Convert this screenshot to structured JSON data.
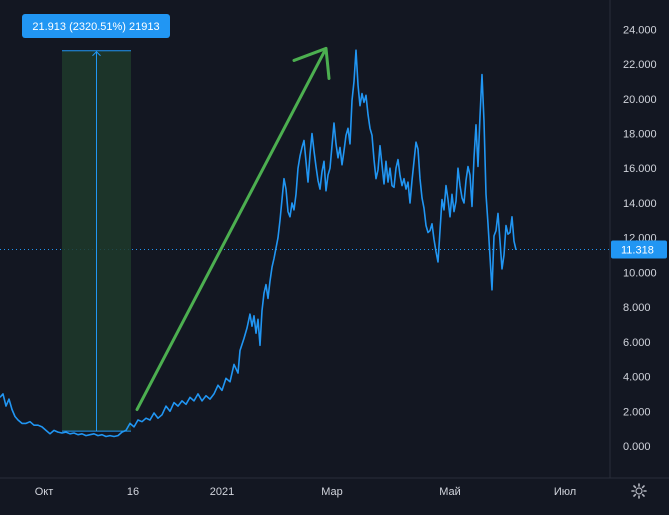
{
  "colors": {
    "background": "#131722",
    "line": "#2196f3",
    "measure_fill": "#1e3a2a",
    "measure_line": "#2196f3",
    "arrow": "#4caf50",
    "axis_text": "#d1d4dc",
    "grid": "#2a2e39",
    "label_bg": "#2196f3",
    "label_text": "#ffffff"
  },
  "settings_icon": "gear-icon",
  "chart_data": {
    "type": "line",
    "title": "",
    "xlabel": "",
    "ylabel": "",
    "ylim": [
      -1.6,
      25.5
    ],
    "y_ticks": [
      "0.000",
      "2.000",
      "4.000",
      "6.000",
      "8.000",
      "10.000",
      "12.000",
      "14.000",
      "16.000",
      "18.000",
      "20.000",
      "22.000",
      "24.000"
    ],
    "x_ticks": [
      "Окт",
      "16",
      "2021",
      "Мар",
      "Май",
      "Июл"
    ],
    "grid": false,
    "current_value_label": "11.318",
    "current_value": 11.318,
    "measure_label": "21.913 (2320.51%) 21913",
    "series": [
      {
        "values": [
          [
            0,
            2.8
          ],
          [
            3,
            3.0
          ],
          [
            6,
            2.3
          ],
          [
            9,
            2.7
          ],
          [
            12,
            2.1
          ],
          [
            15,
            1.7
          ],
          [
            18,
            1.5
          ],
          [
            22,
            1.3
          ],
          [
            26,
            1.3
          ],
          [
            30,
            1.4
          ],
          [
            34,
            1.2
          ],
          [
            38,
            1.2
          ],
          [
            42,
            1.1
          ],
          [
            46,
            0.9
          ],
          [
            50,
            0.7
          ],
          [
            54,
            0.9
          ],
          [
            58,
            0.8
          ],
          [
            62,
            0.75
          ],
          [
            66,
            0.8
          ],
          [
            70,
            0.7
          ],
          [
            74,
            0.75
          ],
          [
            78,
            0.65
          ],
          [
            82,
            0.7
          ],
          [
            86,
            0.6
          ],
          [
            90,
            0.65
          ],
          [
            94,
            0.7
          ],
          [
            98,
            0.6
          ],
          [
            102,
            0.65
          ],
          [
            106,
            0.55
          ],
          [
            110,
            0.6
          ],
          [
            114,
            0.55
          ],
          [
            118,
            0.6
          ],
          [
            122,
            0.8
          ],
          [
            126,
            0.9
          ],
          [
            130,
            1.3
          ],
          [
            134,
            1.1
          ],
          [
            138,
            1.5
          ],
          [
            142,
            1.4
          ],
          [
            146,
            1.6
          ],
          [
            150,
            1.5
          ],
          [
            154,
            1.9
          ],
          [
            158,
            1.6
          ],
          [
            162,
            1.8
          ],
          [
            166,
            2.3
          ],
          [
            170,
            2.0
          ],
          [
            174,
            2.5
          ],
          [
            178,
            2.3
          ],
          [
            182,
            2.6
          ],
          [
            186,
            2.4
          ],
          [
            190,
            2.8
          ],
          [
            194,
            2.6
          ],
          [
            198,
            3.0
          ],
          [
            202,
            2.6
          ],
          [
            206,
            2.9
          ],
          [
            210,
            2.7
          ],
          [
            214,
            3.0
          ],
          [
            218,
            3.5
          ],
          [
            222,
            3.2
          ],
          [
            226,
            3.9
          ],
          [
            230,
            3.7
          ],
          [
            234,
            4.7
          ],
          [
            238,
            4.2
          ],
          [
            240,
            5.5
          ],
          [
            244,
            6.2
          ],
          [
            247,
            6.8
          ],
          [
            250,
            7.6
          ],
          [
            252,
            6.9
          ],
          [
            254,
            7.5
          ],
          [
            256,
            6.5
          ],
          [
            258,
            7.3
          ],
          [
            260,
            5.8
          ],
          [
            262,
            7.8
          ],
          [
            264,
            8.8
          ],
          [
            266,
            9.3
          ],
          [
            268,
            8.5
          ],
          [
            270,
            9.5
          ],
          [
            272,
            10.3
          ],
          [
            274,
            10.8
          ],
          [
            276,
            11.4
          ],
          [
            278,
            12.0
          ],
          [
            280,
            13.0
          ],
          [
            282,
            14.2
          ],
          [
            284,
            15.4
          ],
          [
            286,
            14.8
          ],
          [
            288,
            13.5
          ],
          [
            290,
            13.2
          ],
          [
            292,
            14.0
          ],
          [
            294,
            13.6
          ],
          [
            296,
            14.5
          ],
          [
            298,
            16.0
          ],
          [
            300,
            16.7
          ],
          [
            302,
            17.2
          ],
          [
            304,
            17.6
          ],
          [
            306,
            16.4
          ],
          [
            308,
            15.2
          ],
          [
            310,
            16.8
          ],
          [
            312,
            18.0
          ],
          [
            314,
            17.0
          ],
          [
            316,
            16.1
          ],
          [
            318,
            15.3
          ],
          [
            320,
            14.8
          ],
          [
            322,
            15.8
          ],
          [
            324,
            16.4
          ],
          [
            326,
            14.7
          ],
          [
            328,
            15.6
          ],
          [
            330,
            16.0
          ],
          [
            332,
            17.3
          ],
          [
            334,
            18.6
          ],
          [
            336,
            17.4
          ],
          [
            338,
            16.6
          ],
          [
            340,
            17.2
          ],
          [
            342,
            16.2
          ],
          [
            344,
            17.0
          ],
          [
            346,
            17.9
          ],
          [
            348,
            18.3
          ],
          [
            350,
            17.4
          ],
          [
            352,
            19.9
          ],
          [
            354,
            21.0
          ],
          [
            356,
            22.8
          ],
          [
            358,
            20.8
          ],
          [
            360,
            19.6
          ],
          [
            362,
            20.3
          ],
          [
            364,
            19.8
          ],
          [
            366,
            20.2
          ],
          [
            368,
            19.1
          ],
          [
            370,
            18.3
          ],
          [
            372,
            17.9
          ],
          [
            374,
            16.5
          ],
          [
            376,
            15.4
          ],
          [
            378,
            15.9
          ],
          [
            380,
            17.3
          ],
          [
            382,
            16.2
          ],
          [
            384,
            15.1
          ],
          [
            386,
            16.4
          ],
          [
            388,
            15.2
          ],
          [
            390,
            16.0
          ],
          [
            392,
            15.0
          ],
          [
            394,
            14.9
          ],
          [
            396,
            16.0
          ],
          [
            398,
            16.5
          ],
          [
            400,
            15.6
          ],
          [
            402,
            15.0
          ],
          [
            404,
            15.4
          ],
          [
            406,
            14.8
          ],
          [
            408,
            15.2
          ],
          [
            410,
            14.0
          ],
          [
            412,
            15.3
          ],
          [
            414,
            16.4
          ],
          [
            416,
            17.5
          ],
          [
            418,
            17.1
          ],
          [
            420,
            15.4
          ],
          [
            422,
            14.3
          ],
          [
            424,
            13.7
          ],
          [
            426,
            12.7
          ],
          [
            428,
            12.3
          ],
          [
            430,
            12.4
          ],
          [
            432,
            12.8
          ],
          [
            434,
            11.9
          ],
          [
            436,
            11.2
          ],
          [
            438,
            10.6
          ],
          [
            440,
            12.4
          ],
          [
            442,
            14.2
          ],
          [
            444,
            13.6
          ],
          [
            446,
            15.0
          ],
          [
            448,
            14.2
          ],
          [
            450,
            13.2
          ],
          [
            452,
            14.5
          ],
          [
            454,
            13.5
          ],
          [
            456,
            14.1
          ],
          [
            458,
            16.0
          ],
          [
            460,
            15.0
          ],
          [
            462,
            14.3
          ],
          [
            464,
            14.0
          ],
          [
            466,
            15.3
          ],
          [
            468,
            16.1
          ],
          [
            470,
            15.6
          ],
          [
            472,
            13.8
          ],
          [
            474,
            16.6
          ],
          [
            476,
            18.5
          ],
          [
            478,
            16.1
          ],
          [
            480,
            19.0
          ],
          [
            482,
            21.4
          ],
          [
            484,
            18.7
          ],
          [
            486,
            14.5
          ],
          [
            488,
            12.8
          ],
          [
            490,
            10.9
          ],
          [
            492,
            9.0
          ],
          [
            494,
            12.1
          ],
          [
            496,
            12.4
          ],
          [
            498,
            13.4
          ],
          [
            500,
            11.8
          ],
          [
            502,
            10.2
          ],
          [
            504,
            11.0
          ],
          [
            506,
            12.7
          ],
          [
            508,
            12.2
          ],
          [
            510,
            12.3
          ],
          [
            512,
            13.2
          ],
          [
            514,
            11.8
          ],
          [
            516,
            11.3
          ]
        ]
      }
    ],
    "measure_range": {
      "x_start": 62,
      "x_end": 131,
      "y_from": 0.86,
      "y_to": 22.77
    },
    "arrow": {
      "from": [
        137,
        2.1
      ],
      "to": [
        326,
        22.9
      ]
    }
  }
}
